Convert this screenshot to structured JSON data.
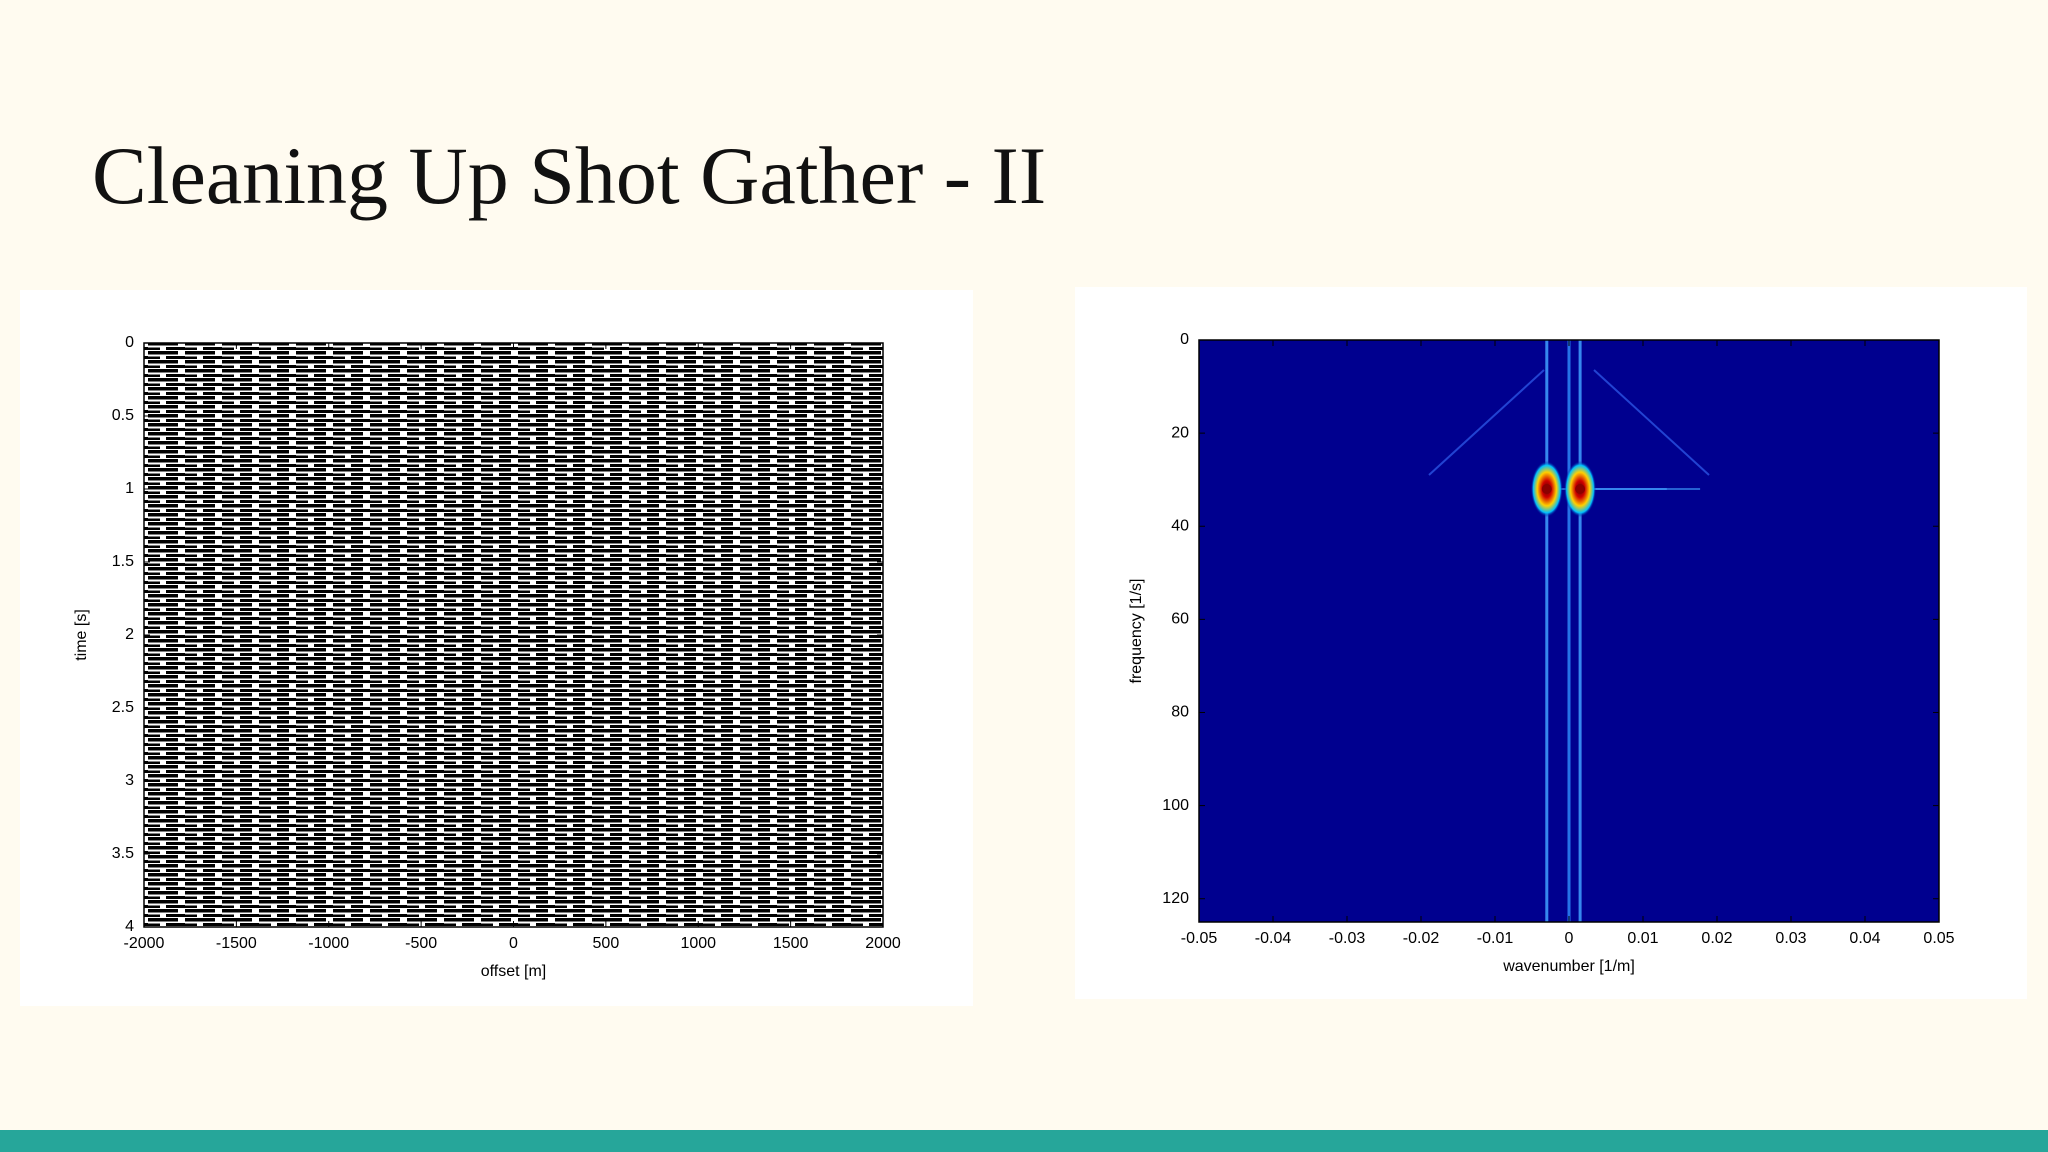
{
  "title": "Cleaning Up Shot Gather - II",
  "chart_data": [
    {
      "type": "seismic",
      "x_label": "offset [m]",
      "y_label": "time [s]",
      "xlim": [
        -2000,
        2000
      ],
      "xticks": [
        -2000,
        -1500,
        -1000,
        -500,
        0,
        500,
        1000,
        1500,
        2000
      ],
      "ylim": [
        0,
        4
      ],
      "yticks": [
        0,
        0.5,
        1,
        1.5,
        2,
        2.5,
        3,
        3.5,
        4
      ],
      "y_inverted": true,
      "grid": false,
      "color": "#000000"
    },
    {
      "type": "heatmap",
      "x_label": "wavenumber [1/m]",
      "y_label": "frequency [1/s]",
      "xlim": [
        -0.05,
        0.05
      ],
      "xticks": [
        -0.05,
        -0.04,
        -0.03,
        -0.02,
        -0.01,
        0,
        0.01,
        0.02,
        0.03,
        0.04,
        0.05
      ],
      "ylim": [
        0,
        125
      ],
      "yticks": [
        0,
        20,
        40,
        60,
        80,
        100,
        120
      ],
      "y_inverted": true,
      "grid": false,
      "color": "#00008f",
      "x": [
        -0.003,
        0.0015
      ],
      "values": [
        32,
        32
      ],
      "peak_color": "#8b0000"
    }
  ]
}
